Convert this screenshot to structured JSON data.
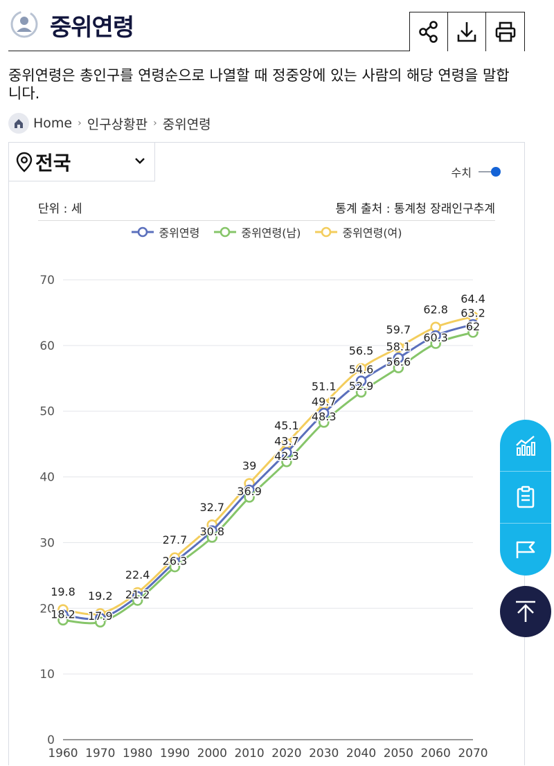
{
  "header": {
    "title": "중위연령"
  },
  "description": "중위연령은 총인구를 연령순으로 나열할 때 정중앙에 있는 사람의 해당 연령을 말합니다.",
  "breadcrumb": {
    "home": "Home",
    "items": [
      "인구상황판",
      "중위연령"
    ]
  },
  "region": {
    "selected": "전국"
  },
  "toggle": {
    "label": "수치"
  },
  "meta": {
    "unit": "단위 : 세",
    "source": "통계 출처 : 통계청 장래인구추계"
  },
  "colors": {
    "total": "#5a6fbc",
    "male": "#86c569",
    "female": "#f3cd5d",
    "accent": "#1463d6",
    "fab": "#17b4ea",
    "top": "#1a1f47"
  },
  "icons": [
    "user-cycle-icon",
    "share-icon",
    "download-icon",
    "print-icon",
    "home-icon",
    "location-pin-icon",
    "chevron-down-icon",
    "chart-icon",
    "clipboard-icon",
    "flag-icon",
    "arrow-up-icon"
  ],
  "chart_data": {
    "type": "line",
    "x": [
      "1960",
      "1970",
      "1980",
      "1990",
      "2000",
      "2010",
      "2020",
      "2030",
      "2040",
      "2050",
      "2060",
      "2070"
    ],
    "ylim": [
      0,
      70
    ],
    "yticks": [
      0,
      10,
      20,
      30,
      40,
      50,
      60,
      70
    ],
    "grid": true,
    "legend": "top-center",
    "series": [
      {
        "name": "중위연령",
        "key": "total",
        "values": [
          19,
          18.5,
          21.8,
          27,
          31.8,
          38,
          43.7,
          49.7,
          54.6,
          58.1,
          61.5,
          63.2
        ],
        "labels": [
          "",
          "",
          "",
          "",
          "",
          "",
          "43.7",
          "49.7",
          "54.6",
          "58.1",
          "",
          "63.2"
        ]
      },
      {
        "name": "중위연령(남)",
        "key": "male",
        "values": [
          18.2,
          17.9,
          21.2,
          26.3,
          30.8,
          36.9,
          42.3,
          48.3,
          52.9,
          56.6,
          60.3,
          62
        ],
        "labels": [
          "18.2",
          "17.9",
          "21.2",
          "26.3",
          "30.8",
          "36.9",
          "42.3",
          "48.3",
          "52.9",
          "56.6",
          "60.3",
          "62"
        ]
      },
      {
        "name": "중위연령(여)",
        "key": "female",
        "values": [
          19.8,
          19.2,
          22.4,
          27.7,
          32.7,
          39,
          45.1,
          51.1,
          56.5,
          59.7,
          62.8,
          64.4
        ],
        "labels": [
          "19.8",
          "19.2",
          "22.4",
          "27.7",
          "32.7",
          "39",
          "45.1",
          "51.1",
          "56.5",
          "59.7",
          "62.8",
          "64.4"
        ]
      }
    ]
  }
}
